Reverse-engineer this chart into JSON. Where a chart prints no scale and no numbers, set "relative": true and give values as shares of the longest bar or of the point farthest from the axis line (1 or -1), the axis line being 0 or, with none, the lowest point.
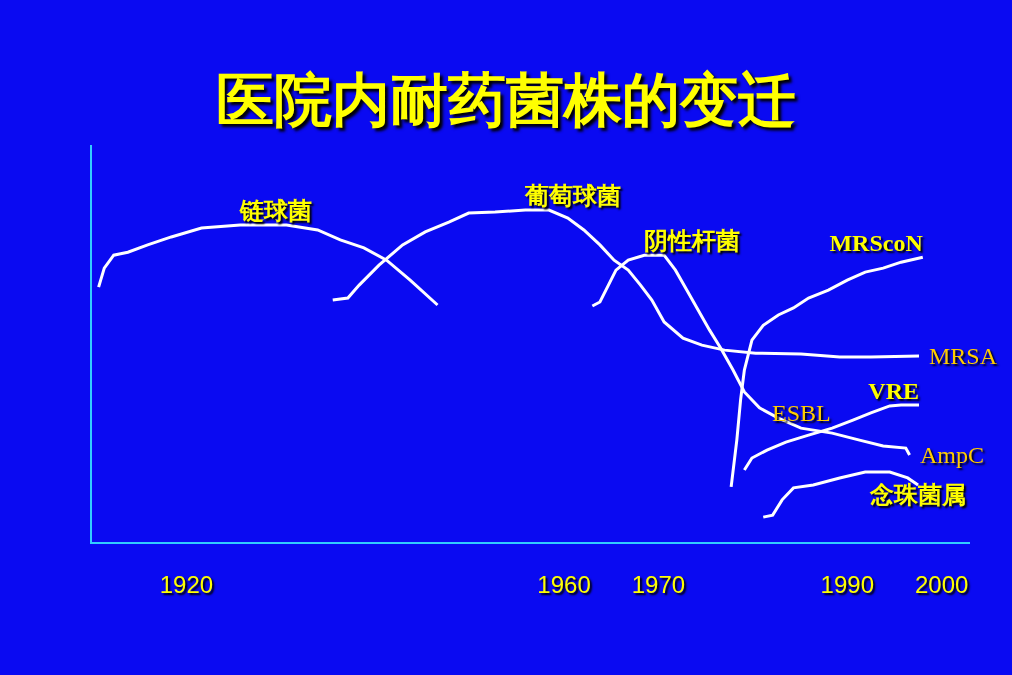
{
  "chart_data": {
    "type": "line",
    "title": "医院内耐药菌株的变迁",
    "relative": true,
    "xlim": [
      1910,
      2003
    ],
    "xticks": [
      1920,
      1960,
      1970,
      1990,
      2000
    ],
    "grid": false,
    "legend": false,
    "marker": "none",
    "line_style": "solid",
    "annotations": [
      {
        "text": "ESBL",
        "x": 1985.1,
        "y": 0.307
      },
      {
        "text": "MRSA",
        "x": 1997.6,
        "y": 0.56
      },
      {
        "text": "AmpC",
        "x": 1996.6,
        "y": 0.262
      }
    ],
    "series": [
      {
        "name": "链球菌",
        "color": "#ffffff",
        "x": [
          1910.7,
          1911.3,
          1912.3,
          1913.8,
          1915.9,
          1918.4,
          1921.6,
          1925.7,
          1930.6,
          1933.9,
          1936.3,
          1938.8,
          1941.2,
          1943.7,
          1946.6
        ],
        "values": [
          0.768,
          0.825,
          0.864,
          0.873,
          0.895,
          0.919,
          0.946,
          0.955,
          0.955,
          0.94,
          0.91,
          0.886,
          0.849,
          0.789,
          0.714
        ]
      },
      {
        "name": "葡萄球菌",
        "color": "#ffffff",
        "x": [
          1935.5,
          1937.1,
          1938.3,
          1940.4,
          1942.9,
          1945.3,
          1947.8,
          1949.9,
          1952.7,
          1955.9,
          1958.4,
          1960.4,
          1962.1,
          1963.8,
          1965.3,
          1966.8,
          1968.1,
          1969.3,
          1970.6,
          1972.6,
          1974.6,
          1977.0,
          1980.3,
          1985.1,
          1989.2,
          1992.5,
          1997.6
        ],
        "values": [
          0.729,
          0.735,
          0.774,
          0.834,
          0.895,
          0.934,
          0.964,
          0.991,
          0.994,
          1.0,
          1.0,
          0.976,
          0.94,
          0.895,
          0.849,
          0.819,
          0.774,
          0.729,
          0.663,
          0.614,
          0.593,
          0.578,
          0.569,
          0.566,
          0.557,
          0.557,
          0.56
        ]
      },
      {
        "name": "阴性杆菌",
        "color": "#ffffff",
        "x": [
          1963.0,
          1963.8,
          1964.7,
          1965.5,
          1966.8,
          1968.5,
          1970.6,
          1971.8,
          1973.0,
          1974.2,
          1975.4,
          1976.6,
          1977.9,
          1979.1,
          1980.7,
          1982.7,
          1985.1,
          1988.4,
          1991.3,
          1993.8,
          1996.2,
          1996.6
        ],
        "values": [
          0.711,
          0.723,
          0.774,
          0.819,
          0.849,
          0.864,
          0.864,
          0.819,
          0.759,
          0.699,
          0.639,
          0.584,
          0.518,
          0.452,
          0.404,
          0.373,
          0.343,
          0.328,
          0.307,
          0.289,
          0.283,
          0.262
        ]
      },
      {
        "name": "MRScoN",
        "color": "#ffffff",
        "x": [
          1977.7,
          1978.3,
          1978.7,
          1979.1,
          1979.9,
          1981.1,
          1982.7,
          1984.3,
          1985.9,
          1988.0,
          1990.0,
          1991.9,
          1993.8,
          1995.7,
          1998.0
        ],
        "values": [
          0.166,
          0.307,
          0.428,
          0.518,
          0.608,
          0.653,
          0.684,
          0.705,
          0.735,
          0.759,
          0.789,
          0.813,
          0.825,
          0.843,
          0.858
        ]
      },
      {
        "name": "VRE",
        "color": "#ffffff",
        "x": [
          1979.1,
          1979.9,
          1981.5,
          1983.5,
          1985.9,
          1988.4,
          1990.6,
          1992.5,
          1994.5,
          1995.7,
          1997.6
        ],
        "values": [
          0.217,
          0.253,
          0.277,
          0.301,
          0.322,
          0.343,
          0.367,
          0.389,
          0.41,
          0.413,
          0.413
        ]
      },
      {
        "name": "念珠菌属",
        "color": "#ffffff",
        "x": [
          1981.1,
          1982.1,
          1983.1,
          1984.3,
          1986.4,
          1989.2,
          1991.9,
          1994.5,
          1996.4,
          1997.5
        ],
        "values": [
          0.075,
          0.081,
          0.127,
          0.163,
          0.172,
          0.193,
          0.211,
          0.211,
          0.193,
          0.172
        ]
      }
    ]
  }
}
